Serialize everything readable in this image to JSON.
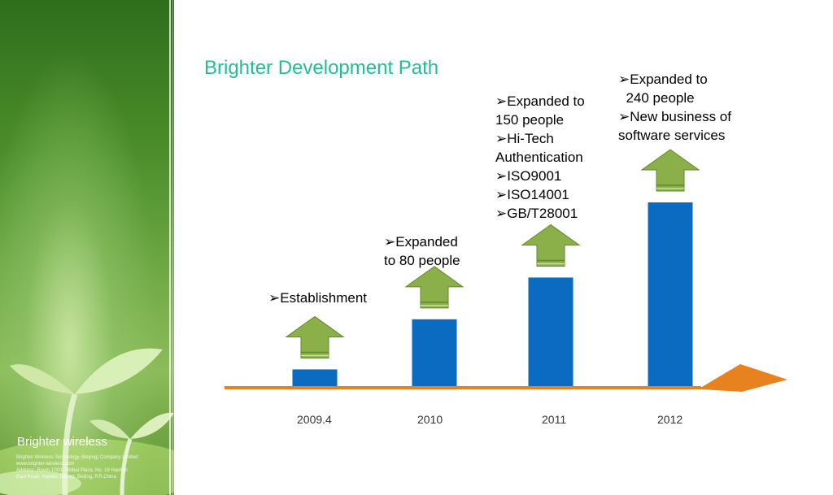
{
  "slide": {
    "title": "Brighter Development Path"
  },
  "sidebar": {
    "brand": "Brighter wireless",
    "footer_lines": [
      "Brighter Wireless Technology (Beijing) Company Limited",
      "www.brighter-wireless.com",
      "Address: Room 1003, Global Plaza, No. 19 Haidian",
      "East Road, Haidian District, Beijing, P.R.China"
    ]
  },
  "annotations": [
    {
      "lines": [
        "➢Establishment"
      ]
    },
    {
      "lines": [
        "➢Expanded",
        "to 80 people"
      ]
    },
    {
      "lines": [
        "➢Expanded to",
        "150 people",
        "➢Hi-Tech",
        "Authentication",
        "➢ISO9001",
        "➢ISO14001",
        "➢GB/T28001"
      ]
    },
    {
      "lines": [
        "➢Expanded to",
        "  240 people",
        "➢New business of",
        "software services"
      ]
    }
  ],
  "chart_data": {
    "type": "bar",
    "categories": [
      "2009.4",
      "2010",
      "2011",
      "2012"
    ],
    "values": [
      1,
      4,
      6.5,
      11
    ],
    "colors": {
      "bar": "#0a6bc1",
      "timeline": "#e8821e",
      "arrow_fill": "#8bb04a",
      "arrow_stroke": "#5f8a2a"
    }
  }
}
